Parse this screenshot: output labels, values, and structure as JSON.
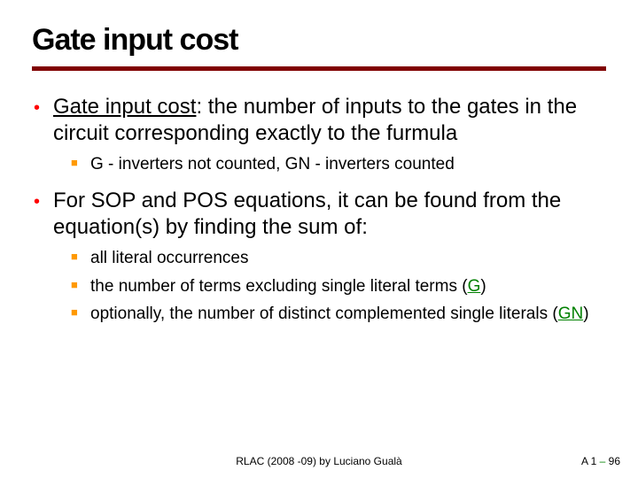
{
  "styles": {
    "title_fontsize": 34,
    "rule_color": "#800000",
    "rule_width": 5,
    "dot_color": "#ff0000",
    "dot_fontsize": 20,
    "level1_fontsize": 24,
    "square_color": "#ff9900",
    "square_fontsize": 13,
    "level2_fontsize": 19,
    "accent_color": "#008000",
    "footer_fontsize": 12,
    "footer_dash_color": "#008000"
  },
  "title": "Gate input cost",
  "bullets": [
    {
      "lead_underline": "Gate input cost",
      "rest": ": the number of inputs to the gates in the circuit corresponding exactly to the furmula",
      "sub": [
        {
          "text": "G - inverters not counted, GN - inverters counted"
        }
      ]
    },
    {
      "text": "For SOP and POS equations, it can be found from the equation(s) by finding the sum of:",
      "sub": [
        {
          "text": "all literal occurrences"
        },
        {
          "text_pre": "the number of terms excluding single literal terms (",
          "accent": "G",
          "text_post": ")"
        },
        {
          "text_pre": "optionally, the number of distinct complemented single literals (",
          "accent": "GN",
          "text_post": ")"
        }
      ]
    }
  ],
  "footer": {
    "center": "RLAC (2008 -09) by Luciano Gualà",
    "right_pre": "A 1 ",
    "right_dash": "–",
    "right_post": " 96"
  }
}
